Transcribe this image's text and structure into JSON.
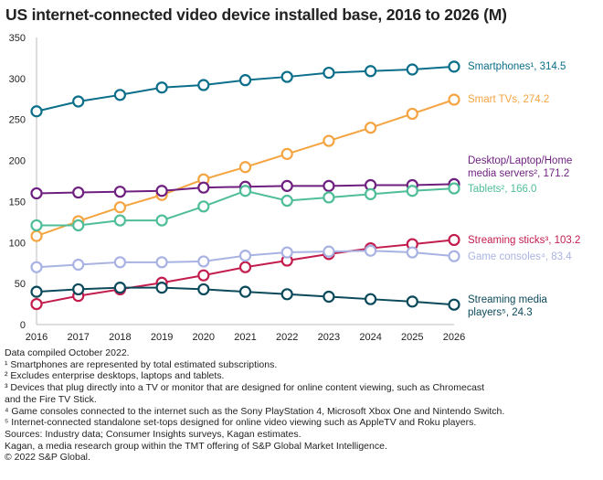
{
  "chart_data": {
    "type": "line",
    "title": "US internet-connected video device installed base, 2016 to 2026 (M)",
    "x": [
      2016,
      2017,
      2018,
      2019,
      2020,
      2021,
      2022,
      2023,
      2024,
      2025,
      2026
    ],
    "ylim": [
      0,
      350
    ],
    "yticks": [
      0,
      50,
      100,
      150,
      200,
      250,
      300,
      350
    ],
    "grid": false,
    "legend": "end-labels",
    "series": [
      {
        "name": "Smartphones¹",
        "end_label": "314.5",
        "color": "#0b6e8a",
        "values": [
          260,
          272,
          280,
          289,
          292,
          298,
          302,
          307,
          309,
          311,
          314.5
        ]
      },
      {
        "name": "Smart TVs",
        "end_label": "274.2",
        "color": "#f4a441",
        "values": [
          108,
          126,
          143,
          158,
          177,
          192,
          208,
          224,
          240,
          257,
          274.2
        ]
      },
      {
        "name": "Desktop/Laptop/Home media servers²",
        "end_label": "171.2",
        "color": "#6e1f7f",
        "values": [
          160,
          161,
          162,
          163,
          167,
          168,
          169,
          169,
          170,
          170,
          171.2
        ]
      },
      {
        "name": "Tablets²",
        "end_label": "166.0",
        "color": "#4fbe98",
        "values": [
          121,
          121,
          127,
          127,
          144,
          163,
          151,
          155,
          159,
          163,
          166.0
        ]
      },
      {
        "name": "Streaming sticks³",
        "end_label": "103.2",
        "color": "#c31d4e",
        "values": [
          25,
          35,
          43,
          51,
          60,
          70,
          78,
          86,
          93,
          98,
          103.2
        ]
      },
      {
        "name": "Game consoles⁴",
        "end_label": "83.4",
        "color": "#a9b3e3",
        "values": [
          70,
          73,
          76,
          76,
          77,
          84,
          88,
          89,
          90,
          88,
          83.4
        ]
      },
      {
        "name": "Streaming media players⁵",
        "end_label": "24.3",
        "color": "#0b4a5b",
        "values": [
          40,
          43,
          45,
          45,
          43,
          40,
          37,
          34,
          31,
          28,
          24.3
        ]
      }
    ]
  },
  "notes": [
    "Data compiled October 2022.",
    "¹ Smartphones are represented by total estimated subscriptions.",
    "² Excludes enterprise desktops, laptops and tablets.",
    "³ Devices that plug directly into a TV or monitor that are designed for online content viewing, such as Chromecast",
    "and the Fire TV Stick.",
    "⁴ Game consoles connected to the internet such as the Sony PlayStation 4, Microsoft Xbox One and Nintendo Switch.",
    "⁵ Internet-connected standalone set-tops designed for online video viewing such as AppleTV and Roku players.",
    "Sources: Industry data; Consumer Insights surveys, Kagan estimates.",
    "Kagan, a media research group within the TMT offering of S&P Global Market Intelligence.",
    "© 2022 S&P Global."
  ]
}
